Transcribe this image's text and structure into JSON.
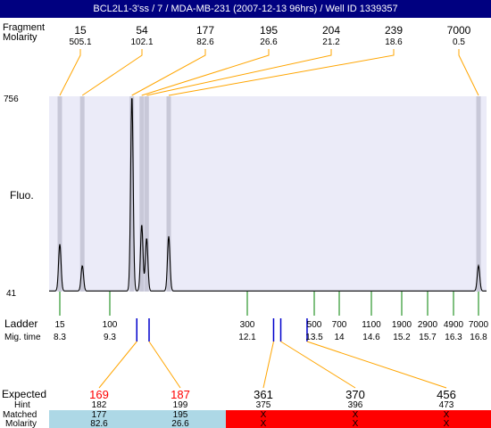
{
  "title": "BCL2L1-3'ss / 7 / MDA-MB-231 (2007-12-13 96hrs) / Well ID 1339357",
  "header_labels": {
    "fragment_label": "Fragment",
    "molarity_label": "Molarity"
  },
  "axis": {
    "ylabel": "Fluo.",
    "ytop": "756",
    "ybottom": "41"
  },
  "ladder_labels": {
    "title": "Ladder",
    "subtitle": "Mig. time"
  },
  "bottom_labels": {
    "expected": "Expected",
    "hint": "Hint",
    "matched": "Matched",
    "molarity": "Molarity"
  },
  "chart_data": {
    "type": "line",
    "ylim": [
      41,
      756
    ],
    "grid": false,
    "peaks": [
      {
        "size": "15",
        "molarity": "505.1",
        "time": 8.3,
        "height": 0.24
      },
      {
        "size": "54",
        "molarity": "102.1",
        "time": 8.75,
        "height": 0.13
      },
      {
        "size": "177",
        "molarity": "82.6",
        "time": 9.75,
        "height": 1.0
      },
      {
        "size": "195",
        "molarity": "26.6",
        "time": 9.95,
        "height": 0.34
      },
      {
        "size": "204",
        "molarity": "21.2",
        "time": 10.05,
        "height": 0.27
      },
      {
        "size": "239",
        "molarity": "18.6",
        "time": 10.5,
        "height": 0.28
      },
      {
        "size": "7000",
        "molarity": "0.5",
        "time": 16.8,
        "height": 0.13
      }
    ],
    "ladder": [
      {
        "size": "15",
        "time": "8.3"
      },
      {
        "size": "100",
        "time": "9.3"
      },
      {
        "size": "300",
        "time": "12.1"
      },
      {
        "size": "500",
        "time": "13.5"
      },
      {
        "size": "700",
        "time": "14"
      },
      {
        "size": "1100",
        "time": "14.6"
      },
      {
        "size": "1900",
        "time": "15.2"
      },
      {
        "size": "2900",
        "time": "15.7"
      },
      {
        "size": "4900",
        "time": "16.3"
      },
      {
        "size": "7000",
        "time": "16.8"
      }
    ],
    "expected": [
      {
        "size": "169",
        "hint": "182",
        "matched": "177",
        "molarity": "82.6",
        "status": "matched",
        "color": "#ff0000",
        "marker_time": 9.85
      },
      {
        "size": "187",
        "hint": "199",
        "matched": "195",
        "molarity": "26.6",
        "status": "matched",
        "color": "#ff0000",
        "marker_time": 10.1
      },
      {
        "size": "361",
        "hint": "375",
        "matched": "X",
        "molarity": "X",
        "status": "unmatched",
        "color": "#000000",
        "marker_time": 12.65
      },
      {
        "size": "370",
        "hint": "396",
        "matched": "X",
        "molarity": "X",
        "status": "unmatched",
        "color": "#000000",
        "marker_time": 12.8
      },
      {
        "size": "456",
        "hint": "473",
        "matched": "X",
        "molarity": "X",
        "status": "unmatched",
        "color": "#000000",
        "marker_time": 13.35
      }
    ],
    "colors": {
      "plot_bg": "#ebebf8",
      "band": "#c8c8d8",
      "connector": "#ffa500",
      "ladder_tick": "#008000",
      "marker": "#0000cc",
      "matched_bg": "#add8e6",
      "unmatched_bg": "#ff0000"
    }
  }
}
